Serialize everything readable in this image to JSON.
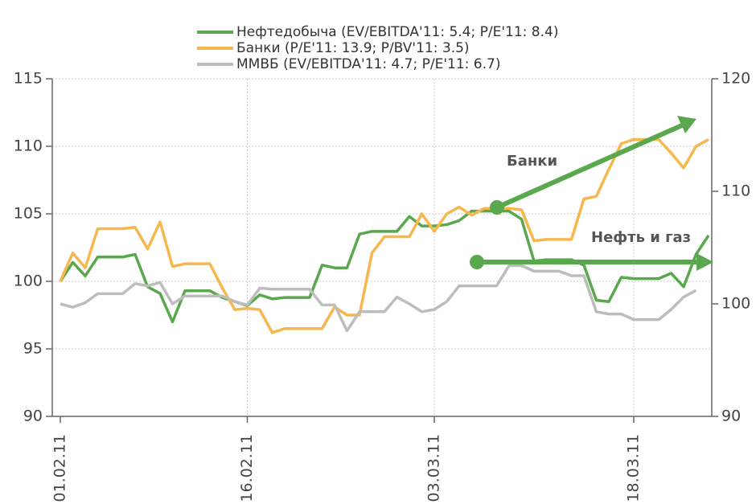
{
  "chart_data": {
    "type": "line",
    "categories": [
      "01.02.11",
      null,
      null,
      null,
      null,
      null,
      null,
      null,
      null,
      null,
      null,
      null,
      null,
      null,
      null,
      "16.02.11",
      null,
      null,
      null,
      null,
      null,
      null,
      null,
      null,
      null,
      null,
      null,
      null,
      null,
      null,
      "03.03.11",
      null,
      null,
      null,
      null,
      null,
      null,
      null,
      null,
      null,
      null,
      null,
      null,
      null,
      null,
      null,
      "18.03.11",
      null,
      null,
      null,
      null,
      null,
      null
    ],
    "ylim": [
      90,
      115
    ],
    "yticks": [
      90,
      95,
      100,
      105,
      110,
      115
    ],
    "y2lim": [
      90,
      120
    ],
    "y2ticks": [
      90,
      100,
      110,
      120
    ],
    "grid": true,
    "legend": "top",
    "series": [
      {
        "name": "Нефтедобыча  (EV/EBITDA'11: 5.4; P/E'11: 8.4)",
        "color": "#5aa84d",
        "values": [
          100,
          101.4,
          100.4,
          101.8,
          101.8,
          101.8,
          102,
          99.6,
          99.1,
          97,
          99.3,
          99.3,
          99.3,
          98.8,
          98.5,
          98.2,
          99,
          98.7,
          98.8,
          98.8,
          98.8,
          101.2,
          101,
          101,
          103.5,
          103.7,
          103.7,
          103.7,
          104.8,
          104.1,
          104.1,
          104.2,
          104.5,
          105.2,
          105.2,
          105.2,
          105.2,
          104.6,
          101.5,
          101.6,
          101.6,
          101.6,
          101.2,
          98.6,
          98.5,
          100.3,
          100.2,
          100.2,
          100.2,
          100.6,
          99.6,
          102,
          103.4
        ]
      },
      {
        "name": "Банки  (P/E'11: 13.9; P/BV'11: 3.5)",
        "color": "#f5b74e",
        "values": [
          100,
          102.1,
          101,
          103.9,
          103.9,
          103.9,
          104,
          102.4,
          104.4,
          101.1,
          101.3,
          101.3,
          101.3,
          99.5,
          97.9,
          98,
          97.9,
          96.2,
          96.5,
          96.5,
          96.5,
          96.5,
          98.1,
          97.5,
          97.5,
          102.1,
          103.3,
          103.3,
          103.3,
          105,
          103.7,
          105,
          105.5,
          104.9,
          105.4,
          105.4,
          105.4,
          105.3,
          103,
          103.1,
          103.1,
          103.1,
          106.1,
          106.3,
          108.3,
          110.2,
          110.5,
          110.5,
          110.5,
          109.5,
          108.4,
          110,
          110.5
        ]
      },
      {
        "name": "ММВБ (EV/EBITDA'11: 4.7; P/E'11: 6.7)",
        "color": "#bdbdbd",
        "axis": "y2",
        "values": [
          100,
          99.7,
          100.1,
          100.9,
          100.9,
          100.9,
          101.8,
          101.6,
          101.9,
          100,
          100.7,
          100.7,
          100.7,
          100.7,
          100.2,
          99.9,
          101.4,
          101.3,
          101.3,
          101.3,
          101.3,
          99.9,
          99.9,
          97.6,
          99.3,
          99.3,
          99.3,
          100.6,
          100,
          99.3,
          99.5,
          100.2,
          101.6,
          101.6,
          101.6,
          101.6,
          103.4,
          103.4,
          102.9,
          102.9,
          102.9,
          102.5,
          102.5,
          99.3,
          99.1,
          99.1,
          98.6,
          98.6,
          98.6,
          99.5,
          100.6,
          101.2,
          null
        ]
      }
    ],
    "annotations": [
      "Банки",
      "Нефть и газ"
    ]
  }
}
